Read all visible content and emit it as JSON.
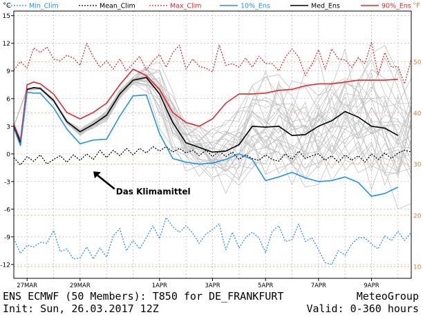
{
  "chart_data": {
    "type": "line",
    "left_axis_unit": "°C",
    "right_axis_unit": "°F",
    "ylim": [
      -13.5,
      15.5
    ],
    "y_ticks": [
      15,
      12,
      9,
      6,
      3,
      0,
      -3,
      -6,
      -9,
      -12
    ],
    "y_ticks_f": [
      50,
      40,
      30,
      20,
      10
    ],
    "x_range_hours": [
      0,
      360
    ],
    "x_ticks": [
      {
        "label": "27MAR",
        "hour": 12
      },
      {
        "label": "29MAR",
        "hour": 60
      },
      {
        "label": "1APR",
        "hour": 132
      },
      {
        "label": "3APR",
        "hour": 180
      },
      {
        "label": "5APR",
        "hour": 228
      },
      {
        "label": "7APR",
        "hour": 276
      },
      {
        "label": "9APR",
        "hour": 324
      }
    ],
    "legend": [
      {
        "name": "Min_Clim",
        "color": "#1e90ff",
        "style": "dotted"
      },
      {
        "name": "Mean_Clim",
        "color": "#000000",
        "style": "dotted"
      },
      {
        "name": "Max_Clim",
        "color": "#e8262b",
        "style": "dotted"
      },
      {
        "name": "10%_Ens",
        "color": "#1e90ff",
        "style": "solid"
      },
      {
        "name": "Med_Ens",
        "color": "#000000",
        "style": "solid"
      },
      {
        "name": "90%_Ens",
        "color": "#e8262b",
        "style": "solid"
      }
    ],
    "series": [
      {
        "name": "Med_Ens",
        "hours": [
          0,
          6,
          12,
          18,
          24,
          36,
          48,
          60,
          72,
          84,
          96,
          108,
          120,
          132,
          144,
          156,
          168,
          180,
          192,
          204,
          216,
          228,
          240,
          252,
          264,
          276,
          288,
          300,
          312,
          324,
          336,
          348
        ],
        "values": [
          3,
          1.2,
          7,
          7.2,
          7.1,
          5.8,
          3.5,
          2.4,
          3.2,
          4.2,
          6.5,
          8,
          8.3,
          6.5,
          3.4,
          1.2,
          0.7,
          0.2,
          0.3,
          1,
          3,
          2.9,
          3,
          2,
          2.1,
          3,
          3.6,
          4.6,
          4,
          3,
          2.8,
          2
        ]
      },
      {
        "name": "90%_Ens",
        "hours": [
          0,
          6,
          12,
          18,
          24,
          36,
          48,
          60,
          72,
          84,
          96,
          108,
          120,
          132,
          144,
          156,
          168,
          180,
          192,
          204,
          216,
          228,
          240,
          252,
          264,
          276,
          288,
          300,
          312,
          324,
          336,
          348
        ],
        "values": [
          3.2,
          1.5,
          7.5,
          7.8,
          7.6,
          6.5,
          4.5,
          3.8,
          4.5,
          5.5,
          7.5,
          9.2,
          8.5,
          7,
          4.5,
          3.4,
          3,
          3.8,
          5.5,
          6.5,
          6.5,
          6.6,
          6.9,
          7,
          7.4,
          7.6,
          7.6,
          7.8,
          8,
          8,
          8,
          8.1
        ]
      },
      {
        "name": "10%_Ens",
        "hours": [
          0,
          6,
          12,
          18,
          24,
          36,
          48,
          60,
          72,
          84,
          96,
          108,
          120,
          132,
          144,
          156,
          168,
          180,
          192,
          204,
          216,
          228,
          240,
          252,
          264,
          276,
          288,
          300,
          312,
          324,
          336,
          348
        ],
        "values": [
          2.8,
          0.9,
          6.7,
          6.6,
          6.6,
          5,
          2.7,
          1.1,
          1.5,
          1.6,
          4.1,
          6.3,
          6.4,
          2.2,
          -0.5,
          -0.9,
          -1.1,
          -1,
          -0.6,
          0,
          -0.6,
          -2.9,
          -2.5,
          -2,
          -2.6,
          -3,
          -2.9,
          -2.5,
          -3.1,
          -4.6,
          -4.3,
          -3.6
        ]
      },
      {
        "name": "Max_Clim",
        "hours": [
          0,
          6,
          12,
          18,
          24,
          30,
          36,
          42,
          48,
          54,
          60,
          66,
          72,
          78,
          84,
          90,
          96,
          102,
          108,
          114,
          120,
          126,
          132,
          138,
          144,
          150,
          156,
          162,
          168,
          174,
          180,
          186,
          192,
          198,
          204,
          210,
          216,
          222,
          228,
          234,
          240,
          246,
          252,
          258,
          264,
          270,
          276,
          282,
          288,
          294,
          300,
          306,
          312,
          318,
          324,
          330,
          336,
          342,
          348,
          354,
          360
        ],
        "values": [
          9.1,
          10,
          9.3,
          11.5,
          11,
          11.6,
          10.3,
          10.1,
          10.7,
          10.4,
          9.6,
          12,
          10.5,
          9.4,
          10.1,
          9.2,
          10.3,
          9,
          9.8,
          10.6,
          9.1,
          10.1,
          10.8,
          9.4,
          11,
          11.8,
          9.2,
          10.3,
          9.5,
          9.3,
          8.9,
          11.8,
          9.6,
          9.8,
          9.4,
          10.4,
          9.4,
          10.6,
          9.8,
          9.8,
          9,
          10.5,
          11.4,
          10.5,
          8.5,
          9.7,
          11.3,
          9.2,
          11.4,
          10.3,
          10.2,
          9.4,
          10.4,
          9.8,
          12.1,
          8.6,
          11,
          9.4,
          9.5,
          7.6,
          10.3
        ]
      },
      {
        "name": "Mean_Clim",
        "hours": [
          0,
          6,
          12,
          18,
          24,
          30,
          36,
          42,
          48,
          54,
          60,
          66,
          72,
          78,
          84,
          90,
          96,
          102,
          108,
          114,
          120,
          126,
          132,
          138,
          144,
          150,
          156,
          162,
          168,
          174,
          180,
          186,
          192,
          198,
          204,
          210,
          216,
          222,
          228,
          234,
          240,
          246,
          252,
          258,
          264,
          270,
          276,
          282,
          288,
          294,
          300,
          306,
          312,
          318,
          324,
          330,
          336,
          342,
          348,
          354,
          360
        ],
        "values": [
          -0.4,
          -1.2,
          -0.3,
          -0.8,
          -0.1,
          -1.1,
          -0.6,
          -0.2,
          -0.9,
          -0.1,
          -0.7,
          0,
          -0.6,
          0.4,
          -0.4,
          0.4,
          -0.2,
          0.6,
          -0.1,
          0.6,
          0.1,
          0.8,
          0.3,
          0.8,
          0.2,
          0.6,
          0.1,
          0.4,
          -0.2,
          0.4,
          -0.3,
          0.3,
          -0.3,
          0.2,
          -0.6,
          -0.1,
          -0.5,
          -0.7,
          -0.1,
          -0.6,
          -0.8,
          0,
          -0.6,
          0.3,
          -0.5,
          -0.2,
          0,
          -0.7,
          -0.2,
          -0.9,
          -0.1,
          -0.7,
          -0.2,
          -0.9,
          0,
          -0.6,
          0.1,
          -0.5,
          0.1,
          0.4,
          0.2
        ]
      },
      {
        "name": "Min_Clim",
        "hours": [
          0,
          6,
          12,
          18,
          24,
          30,
          36,
          42,
          48,
          54,
          60,
          66,
          72,
          78,
          84,
          90,
          96,
          102,
          108,
          114,
          120,
          126,
          132,
          138,
          144,
          150,
          156,
          162,
          168,
          174,
          180,
          186,
          192,
          198,
          204,
          210,
          216,
          222,
          228,
          234,
          240,
          246,
          252,
          258,
          264,
          270,
          276,
          282,
          288,
          294,
          300,
          306,
          312,
          318,
          324,
          330,
          336,
          342,
          348,
          354,
          360
        ],
        "values": [
          -9.2,
          -10.8,
          -9.9,
          -10.1,
          -9.6,
          -9.7,
          -8.3,
          -10.6,
          -10.3,
          -11.4,
          -11.3,
          -10.1,
          -11.4,
          -10.2,
          -11.2,
          -8.9,
          -8.1,
          -10.5,
          -9.4,
          -10.3,
          -9.1,
          -7.8,
          -9.2,
          -6.9,
          -7.9,
          -8.5,
          -7.8,
          -8.6,
          -9.7,
          -8.7,
          -8.2,
          -7.6,
          -10.4,
          -8.5,
          -10.2,
          -9.1,
          -8.5,
          -9.1,
          -10.7,
          -8.4,
          -7.8,
          -9.5,
          -9.3,
          -7.6,
          -9.5,
          -9.1,
          -10.4,
          -11.8,
          -12,
          -10.5,
          -11,
          -9.8,
          -9.1,
          -9.1,
          -9.8,
          -10.3,
          -8.9,
          -9.4,
          -8.4,
          -9.4,
          -8.5
        ]
      }
    ],
    "annotation": {
      "text": "Das Klimamittel",
      "hour": 90,
      "value": -3.5
    }
  },
  "footer": {
    "left_line1": "ENS ECMWF (50 Members): T850 for DE_FRANKFURT",
    "right_line1": "MeteoGroup",
    "left_line2": "Init: Sun, 26.03.2017 12Z",
    "right_line2": "Valid: 0-360 hours"
  },
  "colors": {
    "red": "#e8262b",
    "blue": "#1e90ff",
    "members": "#c2c2c2",
    "grid": "#bbbbbb",
    "fahrenheit": "#d97a28"
  }
}
